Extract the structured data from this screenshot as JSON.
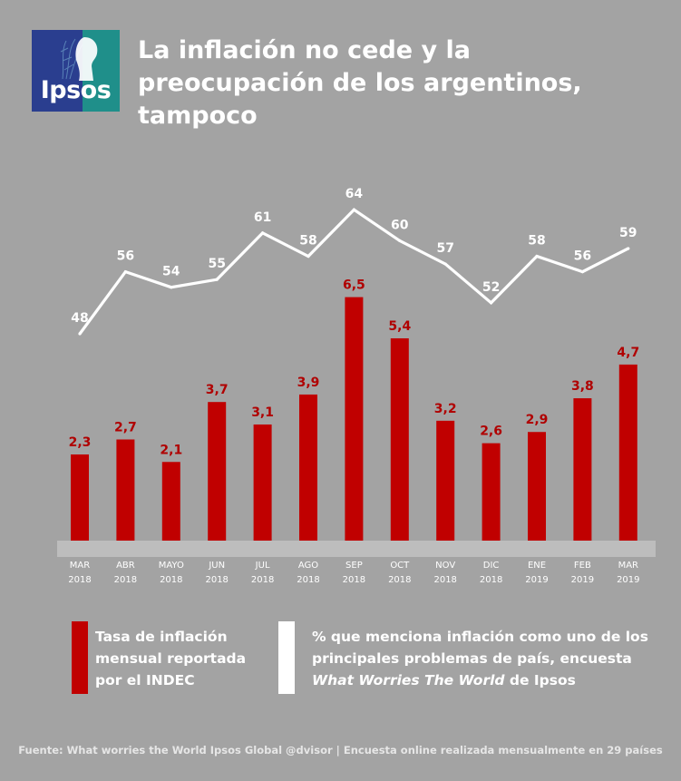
{
  "brand": {
    "logo_text": "Ipsos"
  },
  "title": "La inflación no cede y la preocupación de los argentinos, tampoco",
  "colors": {
    "background": "#a3a3a3",
    "bar": "#c00000",
    "bar_label": "#b00000",
    "line": "#ffffff",
    "axis_band": "#bdbdbd"
  },
  "chart_data": {
    "type": "bar",
    "categories": [
      [
        "MAR",
        "2018"
      ],
      [
        "ABR",
        "2018"
      ],
      [
        "MAYO",
        "2018"
      ],
      [
        "JUN",
        "2018"
      ],
      [
        "JUL",
        "2018"
      ],
      [
        "AGO",
        "2018"
      ],
      [
        "SEP",
        "2018"
      ],
      [
        "OCT",
        "2018"
      ],
      [
        "NOV",
        "2018"
      ],
      [
        "DIC",
        "2018"
      ],
      [
        "ENE",
        "2019"
      ],
      [
        "FEB",
        "2019"
      ],
      [
        "MAR",
        "2019"
      ]
    ],
    "series": [
      {
        "type": "bar",
        "values": [
          2.3,
          2.7,
          2.1,
          3.7,
          3.1,
          3.9,
          6.5,
          5.4,
          3.2,
          2.6,
          2.9,
          3.8,
          4.7
        ],
        "labels": [
          "2,3",
          "2,7",
          "2,1",
          "3,7",
          "3,1",
          "3,9",
          "6,5",
          "5,4",
          "3,2",
          "2,6",
          "2,9",
          "3,8",
          "4,7"
        ],
        "color": "#c00000"
      },
      {
        "type": "line",
        "values": [
          48,
          56,
          54,
          55,
          61,
          58,
          64,
          60,
          57,
          52,
          58,
          56,
          59
        ],
        "labels": [
          "48",
          "56",
          "54",
          "55",
          "61",
          "58",
          "64",
          "60",
          "57",
          "52",
          "58",
          "56",
          "59"
        ],
        "color": "#ffffff"
      }
    ],
    "grid": false,
    "legend": "bottom"
  },
  "legend": {
    "bars": {
      "line1": "Tasa de inflación",
      "line2": "mensual reportada",
      "line3": "por el INDEC"
    },
    "line": {
      "line1": "% que menciona inflación como uno de los",
      "line2": "principales problemas de país, encuesta",
      "line3_italic": "What Worries The World",
      "line3_rest": " de Ipsos"
    }
  },
  "footer": "Fuente: What worries the World Ipsos Global @dvisor | Encuesta online realizada mensualmente en 29 países"
}
